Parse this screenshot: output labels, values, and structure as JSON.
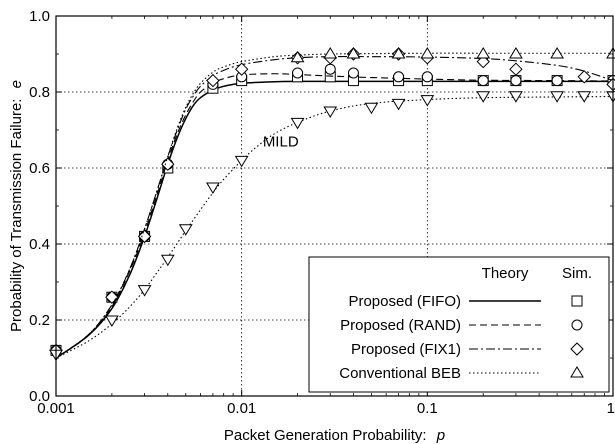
{
  "chart_data": {
    "type": "line",
    "xlabel": "Packet Generation Probability:",
    "xlabel_var": "p",
    "ylabel": "Probability of Transmission Failure:",
    "ylabel_var": "e",
    "x_scale": "log",
    "xlim": [
      0.001,
      1
    ],
    "ylim": [
      0.0,
      1.0
    ],
    "grid": true,
    "grid_style": "dotted",
    "x_ticks": [
      0.001,
      0.01,
      0.1,
      1
    ],
    "x_tick_labels": [
      "0.001",
      "0.01",
      "0.1",
      "1"
    ],
    "y_ticks": [
      0.0,
      0.2,
      0.4,
      0.6,
      0.8,
      1.0
    ],
    "y_tick_labels": [
      "0.0",
      "0.2",
      "0.4",
      "0.6",
      "0.8",
      "1.0"
    ],
    "legend": {
      "placement": "bottom-right",
      "header_theory": "Theory",
      "header_sim": "Sim."
    },
    "annotations": [
      {
        "text": "MILD",
        "x": 0.013,
        "y": 0.67
      }
    ],
    "series": [
      {
        "name": "Proposed (FIFO)",
        "theory_style": "solid",
        "marker": "square",
        "theory": {
          "x": [
            0.001,
            0.0015,
            0.002,
            0.0025,
            0.003,
            0.0035,
            0.004,
            0.0045,
            0.005,
            0.0055,
            0.006,
            0.007,
            0.008,
            0.01,
            0.015,
            0.02,
            0.03,
            0.05,
            0.1,
            0.2,
            0.5,
            1
          ],
          "y": [
            0.1,
            0.16,
            0.23,
            0.32,
            0.42,
            0.52,
            0.61,
            0.68,
            0.73,
            0.765,
            0.785,
            0.805,
            0.815,
            0.823,
            0.827,
            0.828,
            0.828,
            0.828,
            0.828,
            0.828,
            0.828,
            0.828
          ]
        },
        "sim": {
          "x": [
            0.001,
            0.002,
            0.003,
            0.004,
            0.007,
            0.01,
            0.02,
            0.03,
            0.04,
            0.07,
            0.1,
            0.2,
            0.3,
            0.5,
            1
          ],
          "y": [
            0.12,
            0.26,
            0.42,
            0.6,
            0.81,
            0.83,
            0.84,
            0.84,
            0.83,
            0.83,
            0.83,
            0.83,
            0.83,
            0.83,
            0.83
          ]
        }
      },
      {
        "name": "Proposed (RAND)",
        "theory_style": "dashed",
        "marker": "circle",
        "theory": {
          "x": [
            0.001,
            0.0015,
            0.002,
            0.0025,
            0.003,
            0.0035,
            0.004,
            0.0045,
            0.005,
            0.0055,
            0.006,
            0.007,
            0.008,
            0.01,
            0.015,
            0.02,
            0.03,
            0.05,
            0.1,
            0.2,
            0.5,
            1
          ],
          "y": [
            0.1,
            0.16,
            0.235,
            0.33,
            0.43,
            0.53,
            0.62,
            0.69,
            0.74,
            0.775,
            0.8,
            0.823,
            0.835,
            0.845,
            0.848,
            0.846,
            0.842,
            0.838,
            0.834,
            0.831,
            0.83,
            0.829
          ]
        },
        "sim": {
          "x": [
            0.001,
            0.002,
            0.003,
            0.004,
            0.007,
            0.01,
            0.02,
            0.03,
            0.04,
            0.07,
            0.1,
            0.2,
            0.3,
            0.5,
            1
          ],
          "y": [
            0.12,
            0.26,
            0.42,
            0.61,
            0.82,
            0.84,
            0.85,
            0.86,
            0.85,
            0.84,
            0.84,
            0.83,
            0.83,
            0.83,
            0.83
          ]
        }
      },
      {
        "name": "Proposed (FIX1)",
        "theory_style": "dashdot",
        "marker": "diamond",
        "theory": {
          "x": [
            0.001,
            0.0015,
            0.002,
            0.0025,
            0.003,
            0.0035,
            0.004,
            0.0045,
            0.005,
            0.0055,
            0.006,
            0.007,
            0.008,
            0.01,
            0.015,
            0.02,
            0.03,
            0.05,
            0.1,
            0.2,
            0.3,
            0.5,
            0.7,
            1
          ],
          "y": [
            0.1,
            0.162,
            0.24,
            0.335,
            0.44,
            0.54,
            0.63,
            0.7,
            0.755,
            0.79,
            0.815,
            0.843,
            0.857,
            0.872,
            0.885,
            0.89,
            0.893,
            0.893,
            0.892,
            0.888,
            0.882,
            0.87,
            0.855,
            0.83
          ]
        },
        "sim": {
          "x": [
            0.001,
            0.002,
            0.003,
            0.004,
            0.007,
            0.01,
            0.02,
            0.03,
            0.04,
            0.07,
            0.1,
            0.2,
            0.3,
            0.7,
            1
          ],
          "y": [
            0.12,
            0.26,
            0.42,
            0.61,
            0.83,
            0.86,
            0.89,
            0.89,
            0.9,
            0.9,
            0.89,
            0.88,
            0.86,
            0.84,
            0.82
          ]
        }
      },
      {
        "name": "Conventional BEB",
        "theory_style": "dotted",
        "marker": "triangle",
        "theory": {
          "x": [
            0.001,
            0.0015,
            0.002,
            0.0025,
            0.003,
            0.0035,
            0.004,
            0.0045,
            0.005,
            0.0055,
            0.006,
            0.007,
            0.008,
            0.01,
            0.015,
            0.02,
            0.03,
            0.05,
            0.1,
            0.2,
            0.5,
            1
          ],
          "y": [
            0.1,
            0.162,
            0.24,
            0.335,
            0.44,
            0.54,
            0.63,
            0.705,
            0.76,
            0.797,
            0.823,
            0.852,
            0.866,
            0.88,
            0.893,
            0.897,
            0.9,
            0.901,
            0.902,
            0.902,
            0.902,
            0.902
          ]
        },
        "sim": {
          "x": [
            0.02,
            0.03,
            0.04,
            0.07,
            0.1,
            0.2,
            0.3,
            0.5,
            1
          ],
          "y": [
            0.89,
            0.9,
            0.9,
            0.9,
            0.9,
            0.9,
            0.9,
            0.9,
            0.9
          ]
        }
      },
      {
        "name": "",
        "theory_style": "dotted",
        "marker": "inverted-triangle",
        "theory": {
          "x": [
            0.001,
            0.0015,
            0.002,
            0.0025,
            0.003,
            0.0035,
            0.004,
            0.005,
            0.006,
            0.007,
            0.008,
            0.01,
            0.012,
            0.015,
            0.02,
            0.03,
            0.05,
            0.1,
            0.2,
            0.5,
            1
          ],
          "y": [
            0.1,
            0.145,
            0.19,
            0.235,
            0.28,
            0.325,
            0.365,
            0.435,
            0.49,
            0.535,
            0.57,
            0.62,
            0.655,
            0.69,
            0.72,
            0.75,
            0.77,
            0.78,
            0.785,
            0.787,
            0.788
          ]
        },
        "sim": {
          "x": [
            0.001,
            0.002,
            0.003,
            0.004,
            0.005,
            0.007,
            0.01,
            0.02,
            0.03,
            0.05,
            0.07,
            0.1,
            0.2,
            0.3,
            0.5,
            0.7,
            1
          ],
          "y": [
            0.11,
            0.2,
            0.28,
            0.36,
            0.44,
            0.55,
            0.62,
            0.72,
            0.75,
            0.76,
            0.77,
            0.78,
            0.79,
            0.79,
            0.79,
            0.79,
            0.79
          ]
        }
      }
    ]
  }
}
